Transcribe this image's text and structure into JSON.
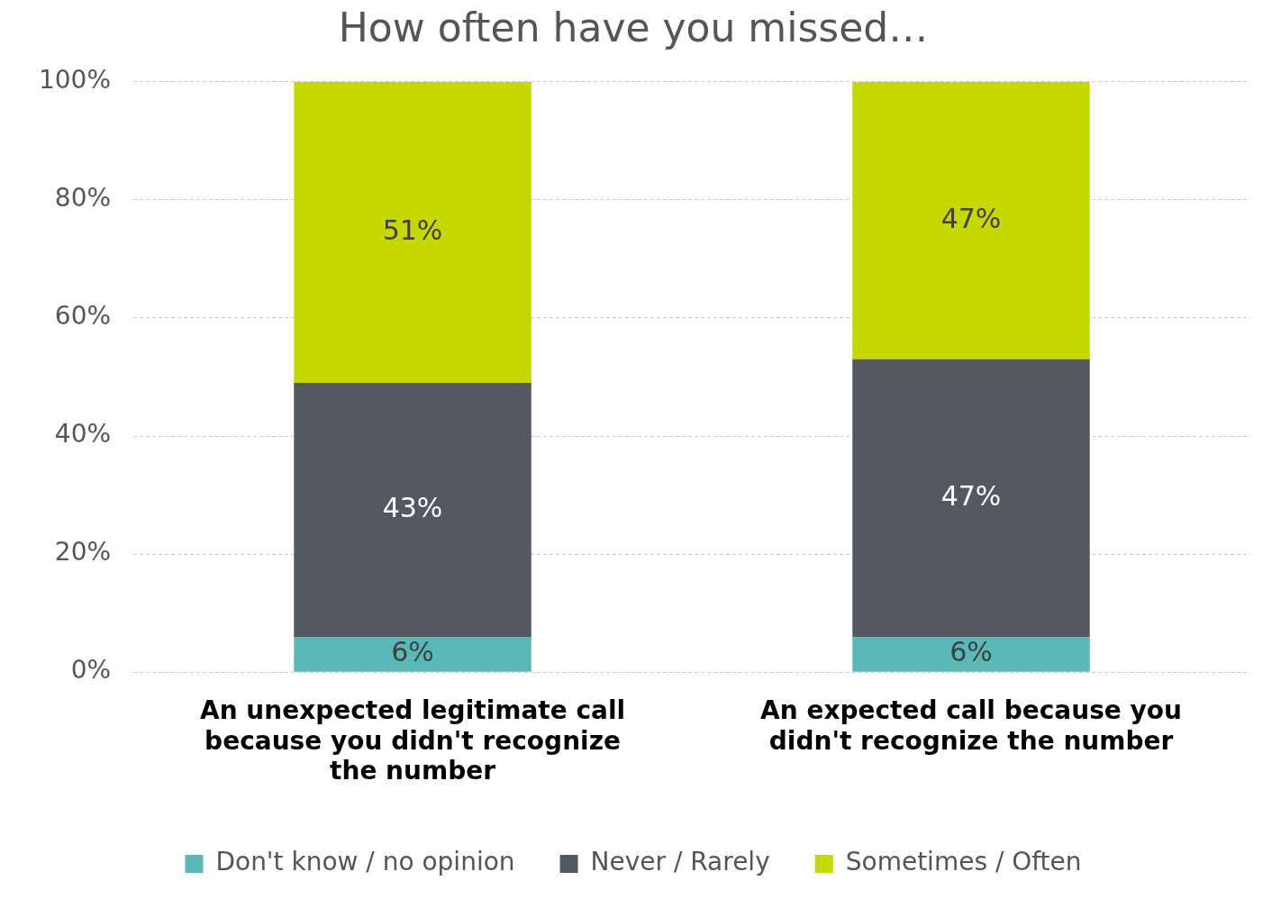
{
  "chart_data": {
    "type": "bar",
    "title": "How often have you missed…",
    "stacked": true,
    "categories": [
      "An unexpected legitimate call because you didn't recognize the number",
      "An expected call because you didn't recognize the number"
    ],
    "series": [
      {
        "name": "Don't know / no opinion",
        "color": "#5bb8b8",
        "values": [
          6,
          6
        ],
        "value_labels": [
          "6%",
          "6%"
        ]
      },
      {
        "name": "Never / Rarely",
        "color": "#545861",
        "values": [
          43,
          47
        ],
        "value_labels": [
          "43%",
          "47%"
        ]
      },
      {
        "name": "Sometimes / Often",
        "color": "#c5d900",
        "values": [
          51,
          47
        ],
        "value_labels": [
          "51%",
          "47%"
        ]
      }
    ],
    "ylim": [
      0,
      100
    ],
    "yticks": [
      {
        "value": 0,
        "label": "0%"
      },
      {
        "value": 20,
        "label": "20%"
      },
      {
        "value": 40,
        "label": "40%"
      },
      {
        "value": 60,
        "label": "60%"
      },
      {
        "value": 80,
        "label": "80%"
      },
      {
        "value": 100,
        "label": "100%"
      }
    ],
    "grid": "y",
    "legend": "bottom"
  }
}
